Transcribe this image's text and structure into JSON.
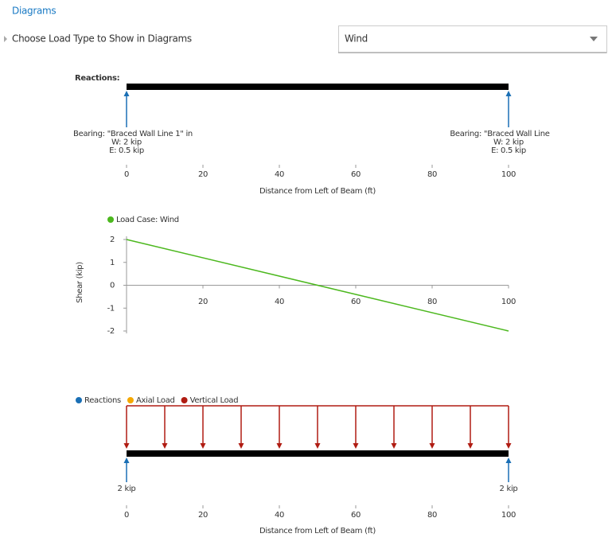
{
  "header": {
    "title": "Diagrams"
  },
  "control": {
    "label": "Choose Load Type to Show in Diagrams",
    "value": "Wind"
  },
  "chart_data": [
    {
      "type": "beam",
      "title": "Reactions:",
      "xlabel": "Distance from Left of Beam (ft)",
      "xlim": [
        0,
        100
      ],
      "xticks": [
        0,
        20,
        40,
        60,
        80,
        100
      ],
      "color": "#1a6fb5",
      "supports": {
        "x": [
          0,
          100
        ],
        "labels": [
          [
            "Bearing: \"Braced Wall Line 1\" in",
            "W: 2 kip",
            "E: 0.5 kip"
          ],
          [
            "Bearing: \"Braced Wall Line",
            "W: 2 kip",
            "E: 0.5 kip"
          ]
        ]
      }
    },
    {
      "type": "line",
      "ylabel": "Shear (kip)",
      "x": [
        0,
        100
      ],
      "series": [
        {
          "name": "Load Case: Wind",
          "color": "#4cb81e",
          "values": [
            2,
            -2
          ]
        }
      ],
      "xlim": [
        0,
        100
      ],
      "xticks": [
        20,
        40,
        60,
        80,
        100
      ],
      "ylim": [
        -2,
        2
      ],
      "yticks": [
        -2,
        -1,
        0,
        1,
        2
      ]
    },
    {
      "type": "loads",
      "xlabel": "Distance from Left of Beam (ft)",
      "xlim": [
        0,
        100
      ],
      "xticks": [
        0,
        20,
        40,
        60,
        80,
        100
      ],
      "series": [
        {
          "name": "Reactions",
          "color": "#1a6fb5",
          "x": [
            0,
            100
          ],
          "values": [
            2,
            2
          ],
          "value_labels": [
            "2 kip",
            "2 kip"
          ]
        },
        {
          "name": "Axial Load",
          "color": "#f5a800"
        },
        {
          "name": "Vertical Load",
          "color": "#b01c12"
        }
      ]
    }
  ]
}
